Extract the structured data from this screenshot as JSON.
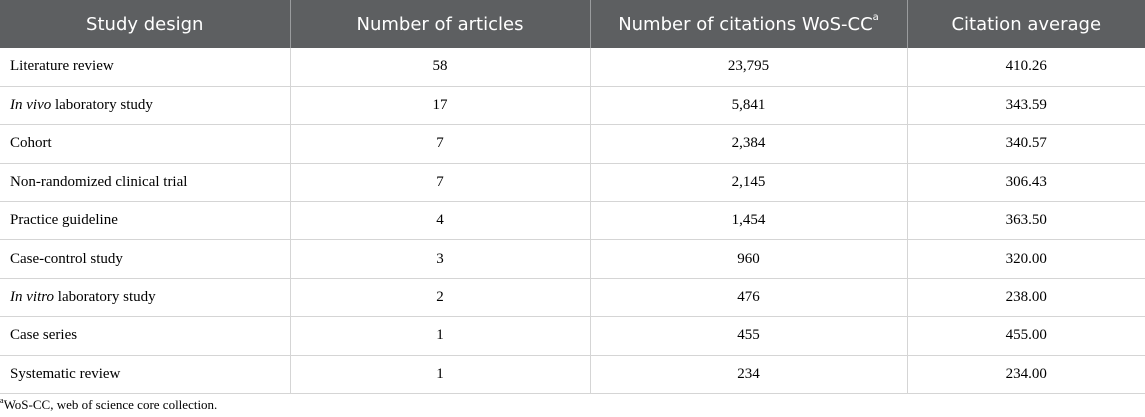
{
  "table": {
    "headers": [
      {
        "text": "Study design",
        "sup": ""
      },
      {
        "text": "Number of articles",
        "sup": ""
      },
      {
        "text": "Number of citations WoS-CC",
        "sup": "a"
      },
      {
        "text": "Citation average",
        "sup": ""
      }
    ],
    "rows": [
      {
        "design_italic": "",
        "design_rest": "Literature review",
        "articles": "58",
        "citations": "23,795",
        "average": "410.26"
      },
      {
        "design_italic": "In vivo",
        "design_rest": " laboratory study",
        "articles": "17",
        "citations": "5,841",
        "average": "343.59"
      },
      {
        "design_italic": "",
        "design_rest": "Cohort",
        "articles": "7",
        "citations": "2,384",
        "average": "340.57"
      },
      {
        "design_italic": "",
        "design_rest": "Non-randomized clinical trial",
        "articles": "7",
        "citations": "2,145",
        "average": "306.43"
      },
      {
        "design_italic": "",
        "design_rest": "Practice guideline",
        "articles": "4",
        "citations": "1,454",
        "average": "363.50"
      },
      {
        "design_italic": "",
        "design_rest": "Case-control study",
        "articles": "3",
        "citations": "960",
        "average": "320.00"
      },
      {
        "design_italic": "In vitro",
        "design_rest": " laboratory study",
        "articles": "2",
        "citations": "476",
        "average": "238.00"
      },
      {
        "design_italic": "",
        "design_rest": "Case series",
        "articles": "1",
        "citations": "455",
        "average": "455.00"
      },
      {
        "design_italic": "",
        "design_rest": "Systematic review",
        "articles": "1",
        "citations": "234",
        "average": "234.00"
      }
    ]
  },
  "footnote": {
    "marker": "a",
    "text": "WoS-CC, web of science core collection."
  },
  "colors": {
    "header_bg": "#5d5f61",
    "header_text": "#ffffff",
    "grid_line": "#d5d5d5"
  }
}
